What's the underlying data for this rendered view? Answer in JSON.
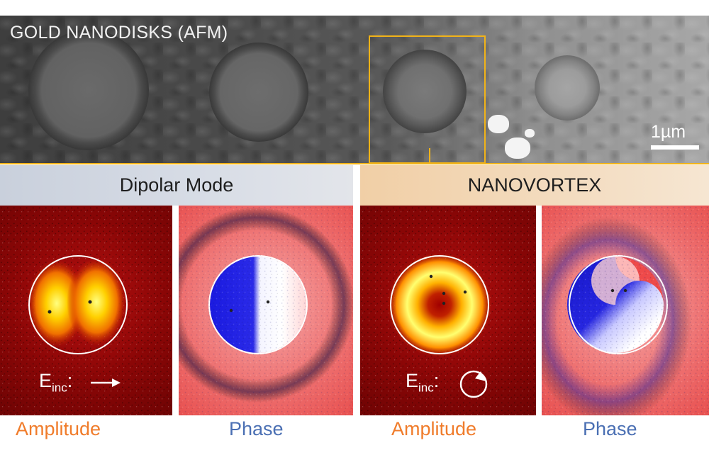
{
  "afm": {
    "title": "GOLD NANODISKS (AFM)",
    "scale_bar_label": "1µm",
    "selection_color": "#f2b318"
  },
  "headers": {
    "dipolar": "Dipolar Mode",
    "vortex": "NANOVORTEX"
  },
  "labels": {
    "amplitude": "Amplitude",
    "phase": "Phase"
  },
  "einc": {
    "base": "E",
    "sub": "inc",
    "colon": ":",
    "dipolar_icon": "linear-arrow-icon",
    "vortex_icon": "circular-arrow-icon"
  },
  "colors": {
    "amplitude_text": "#f07c2b",
    "phase_text": "#4a6fb3",
    "dipolar_header_bg": "#d8dde6",
    "vortex_header_bg": "#f3dcc0"
  }
}
